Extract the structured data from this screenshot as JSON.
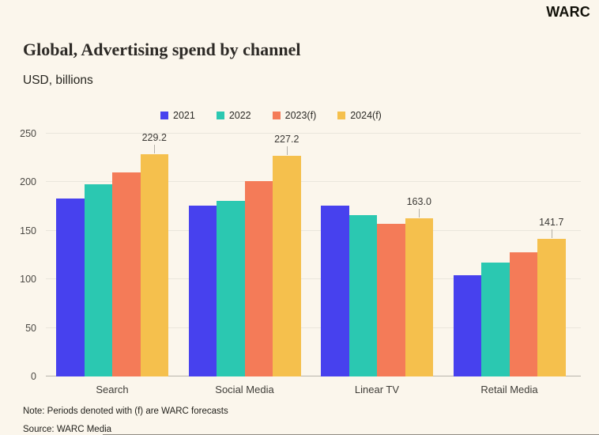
{
  "header": {
    "logo": "WARC",
    "title": "Global, Advertising spend by channel",
    "subtitle": "USD, billions"
  },
  "chart_data": {
    "type": "bar",
    "title": "Global, Advertising spend by channel",
    "ylabel": "USD, billions",
    "categories": [
      "Search",
      "Social Media",
      "Linear TV",
      "Retail Media"
    ],
    "series": [
      {
        "name": "2021",
        "color": "#4741EE",
        "values": [
          183,
          176,
          176,
          104
        ]
      },
      {
        "name": "2022",
        "color": "#2BC8B1",
        "values": [
          198,
          181,
          166,
          117
        ]
      },
      {
        "name": "2023(f)",
        "color": "#F47B58",
        "values": [
          210,
          201,
          157,
          128
        ]
      },
      {
        "name": "2024(f)",
        "color": "#F5C04D",
        "values": [
          229.2,
          227.2,
          163.0,
          141.7
        ]
      }
    ],
    "value_labels": {
      "series": "2024(f)",
      "values": [
        "229.2",
        "227.2",
        "163.0",
        "141.7"
      ]
    },
    "ylim": [
      0,
      250
    ],
    "yticks": [
      0,
      50,
      100,
      150,
      200,
      250
    ],
    "grid": "horizontal",
    "legend_position": "top"
  },
  "footer": {
    "note": "Note: Periods denoted with (f) are WARC forecasts",
    "source": "Source: WARC Media"
  },
  "colors": {
    "background": "#FBF6EC",
    "gridline": "#EAE6DC",
    "axis_baseline": "#B9B5AC",
    "series_2021": "#4741EE",
    "series_2022": "#2BC8B1",
    "series_2023f": "#F47B58",
    "series_2024f": "#F5C04D"
  }
}
